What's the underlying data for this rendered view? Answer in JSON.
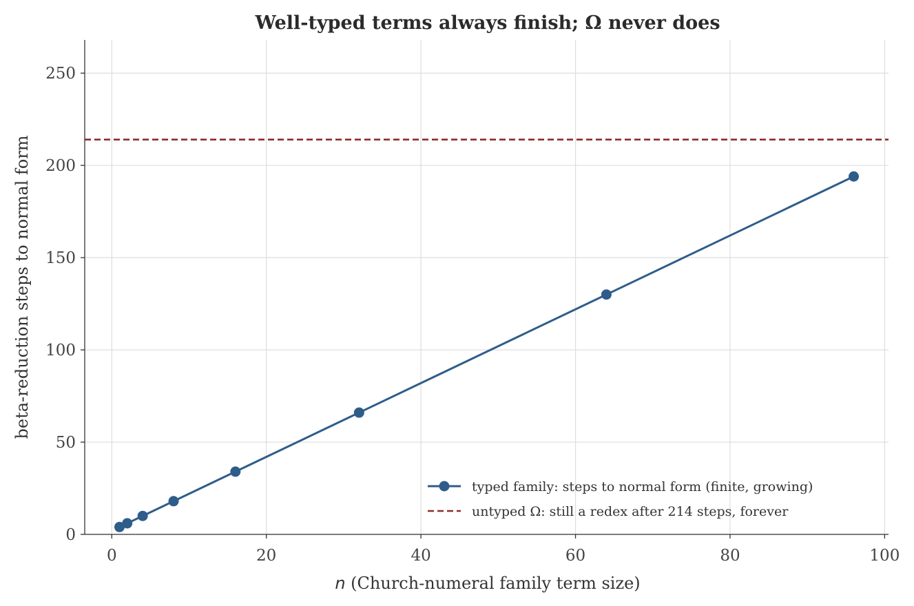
{
  "chart_data": {
    "type": "line",
    "title": "Well-typed terms always finish; Ω never does",
    "xlabel_var": "n",
    "xlabel_rest": " (Church-numeral family term size)",
    "ylabel": "beta-reduction steps to normal form",
    "xlim": [
      -3.5,
      100.5
    ],
    "ylim": [
      0,
      268
    ],
    "xticks": [
      0,
      20,
      40,
      60,
      80,
      100
    ],
    "yticks": [
      0,
      50,
      100,
      150,
      200,
      250
    ],
    "grid": true,
    "legend_position": "lower-right",
    "series": [
      {
        "name": "typed family: steps to normal form (finite, growing)",
        "style": "line-with-markers",
        "color": "#2e5d8a",
        "x": [
          1,
          2,
          4,
          8,
          16,
          32,
          64,
          96
        ],
        "y": [
          4,
          6,
          10,
          18,
          34,
          66,
          130,
          194
        ]
      }
    ],
    "reference_lines": [
      {
        "name": "untyped Ω: still a redex after 214 steps, forever",
        "orientation": "horizontal",
        "y": 214,
        "style": "dashed",
        "color": "#8e2b2b"
      }
    ]
  }
}
